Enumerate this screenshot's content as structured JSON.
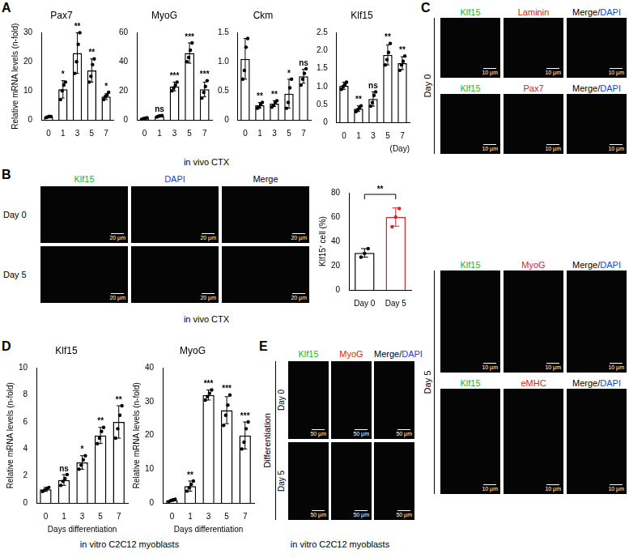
{
  "chart_data": [
    {
      "type": "bar",
      "title": "Pax7",
      "y_label": "Relative mRNA levels (n-fold)",
      "grid": false,
      "categories": [
        "0",
        "1",
        "3",
        "5",
        "7"
      ],
      "values": [
        1,
        10.5,
        23,
        17,
        8
      ],
      "error": [
        0.3,
        3,
        7,
        4,
        1
      ],
      "points": [
        [
          0.8,
          1.0,
          1.2,
          1.1
        ],
        [
          7,
          10,
          12,
          13
        ],
        [
          16,
          20,
          26,
          30
        ],
        [
          13,
          15,
          19,
          21
        ],
        [
          7,
          8,
          8.5,
          9.5
        ]
      ],
      "annotations": [
        null,
        "*",
        "**",
        "**",
        "*"
      ],
      "color": "#000000",
      "ylim": [
        0,
        30
      ],
      "yticks": [
        0,
        10,
        20,
        30
      ]
    },
    {
      "type": "bar",
      "title": "MyoG",
      "grid": false,
      "categories": [
        "0",
        "1",
        "3",
        "5",
        "7"
      ],
      "values": [
        1,
        2.5,
        23,
        46,
        21
      ],
      "error": [
        0.4,
        0.5,
        3,
        7,
        5
      ],
      "points": [
        [
          0.5,
          0.8,
          1.2,
          1.4
        ],
        [
          2,
          2.5,
          2.8,
          3
        ],
        [
          20,
          22,
          24,
          26
        ],
        [
          40,
          43,
          48,
          53
        ],
        [
          15,
          19,
          23,
          27
        ]
      ],
      "annotations": [
        null,
        "ns",
        "***",
        "***",
        "***"
      ],
      "color": "#000000",
      "ylim": [
        0,
        60
      ],
      "yticks": [
        0,
        20,
        40,
        60
      ]
    },
    {
      "type": "bar",
      "title": "Ckm",
      "grid": false,
      "categories": [
        "0",
        "1",
        "3",
        "5",
        "7"
      ],
      "values": [
        1.05,
        0.25,
        0.28,
        0.45,
        0.75
      ],
      "error": [
        0.35,
        0.05,
        0.05,
        0.25,
        0.12
      ],
      "points": [
        [
          0.7,
          0.85,
          1.25,
          1.4
        ],
        [
          0.2,
          0.22,
          0.27,
          0.3
        ],
        [
          0.22,
          0.25,
          0.3,
          0.33
        ],
        [
          0.2,
          0.3,
          0.55,
          0.7
        ],
        [
          0.6,
          0.7,
          0.8,
          0.88
        ]
      ],
      "annotations": [
        null,
        "**",
        "**",
        "*",
        "ns"
      ],
      "color": "#000000",
      "ylim": [
        0,
        1.5
      ],
      "yticks": [
        0,
        0.5,
        {
          "value": 1,
          "label": "1.0"
        },
        1.5
      ]
    },
    {
      "type": "bar",
      "title": "Klf15",
      "x_label": "(Day)",
      "grid": false,
      "categories": [
        "0",
        "1",
        "3",
        "5",
        "7"
      ],
      "values": [
        1.02,
        0.38,
        0.65,
        1.88,
        1.65
      ],
      "error": [
        0.1,
        0.08,
        0.2,
        0.28,
        0.18
      ],
      "points": [
        [
          0.92,
          1.0,
          1.05,
          1.12
        ],
        [
          0.3,
          0.35,
          0.4,
          0.46
        ],
        [
          0.45,
          0.55,
          0.75,
          0.85
        ],
        [
          1.6,
          1.75,
          1.95,
          2.2
        ],
        [
          1.45,
          1.6,
          1.7,
          1.85
        ]
      ],
      "annotations": [
        null,
        "**",
        "ns",
        "**",
        "**"
      ],
      "color": "#000000",
      "ylim": [
        0,
        2.5
      ],
      "yticks": [
        0,
        0.5,
        {
          "value": 1,
          "label": "1.0"
        },
        1.5,
        {
          "value": 2,
          "label": "2.0"
        },
        2.5
      ]
    },
    {
      "type": "bar",
      "y_label": "Klf15⁺ cell (%)",
      "grid": false,
      "categories": [
        "Day 0",
        "Day 5"
      ],
      "values": [
        30.5,
        60
      ],
      "error": [
        3.5,
        7.5
      ],
      "points": [
        [
          27,
          30,
          34
        ],
        [
          52,
          60,
          67
        ]
      ],
      "comparison": {
        "between": [
          "Day 0",
          "Day 5"
        ],
        "label": "**"
      },
      "colors": [
        "#000000",
        "#d62728"
      ],
      "ylim": [
        0,
        80
      ],
      "yticks": [
        0,
        20,
        40,
        60,
        80
      ]
    },
    {
      "type": "bar",
      "title": "Klf15",
      "y_label": "Relative mRNA levels (n-fold)",
      "x_label": "Days differentiation",
      "grid": false,
      "categories": [
        "0",
        "1",
        "3",
        "5",
        "7"
      ],
      "values": [
        1,
        1.7,
        3,
        5,
        6
      ],
      "error": [
        0.15,
        0.4,
        0.5,
        0.6,
        1.2
      ],
      "points": [
        [
          0.85,
          0.95,
          1.05,
          1.15
        ],
        [
          1.3,
          1.6,
          1.8,
          2.1
        ],
        [
          2.5,
          2.8,
          3.2,
          3.5
        ],
        [
          4.4,
          4.8,
          5.3,
          5.6
        ],
        [
          4.8,
          5.5,
          6.5,
          7.2
        ]
      ],
      "annotations": [
        null,
        "ns",
        "*",
        "**",
        "**"
      ],
      "color": "#000000",
      "ylim": [
        0,
        10
      ],
      "yticks": [
        0,
        2,
        4,
        6,
        8,
        10
      ]
    },
    {
      "type": "bar",
      "title": "MyoG",
      "y_label": "Relative mRNA levels (n-fold)",
      "x_label": "Days differentiation",
      "grid": false,
      "categories": [
        "0",
        "1",
        "3",
        "5",
        "7"
      ],
      "values": [
        0.8,
        5,
        32,
        27.5,
        20
      ],
      "error": [
        0.3,
        1.5,
        1.5,
        4,
        4
      ],
      "points": [
        [
          0.4,
          0.7,
          0.9,
          1.1
        ],
        [
          3.5,
          4.5,
          5.5,
          6.5
        ],
        [
          30.5,
          31.5,
          32.5,
          33.5
        ],
        [
          23,
          26,
          29,
          32
        ],
        [
          16,
          18,
          22,
          24
        ]
      ],
      "annotations": [
        null,
        "**",
        "***",
        "***",
        "***"
      ],
      "color": "#000000",
      "ylim": [
        0,
        40
      ],
      "yticks": [
        0,
        10,
        20,
        30,
        40
      ]
    }
  ],
  "panel_letters": [
    "A",
    "B",
    "C",
    "D",
    "E"
  ],
  "captions": {
    "A": "in vivo CTX",
    "B": "in vivo CTX",
    "D": "in vitro C2C12 myoblasts",
    "E": "in vitro C2C12 myoblasts"
  },
  "image_panels": {
    "B": {
      "headers": [
        [
          {
            "text": "Klf15",
            "color": "#22b822"
          }
        ],
        [
          {
            "text": "DAPI",
            "color": "#1f3fdd"
          }
        ],
        [
          {
            "text": "Merge",
            "color": "#000000"
          }
        ]
      ],
      "rows": [
        "Day 0",
        "Day 5"
      ],
      "scale_bar": "20 µm"
    },
    "C": {
      "groups": [
        {
          "label": "Day 0",
          "rows": [
            [
              [
                {
                  "text": "Klf15",
                  "color": "#22b822"
                }
              ],
              [
                {
                  "text": "Laminin",
                  "color": "#e02020"
                }
              ],
              [
                {
                  "text": "Merge/",
                  "color": "#000000"
                },
                {
                  "text": "DAPI",
                  "color": "#1f3fdd"
                }
              ]
            ],
            [
              [
                {
                  "text": "Klf15",
                  "color": "#22b822"
                }
              ],
              [
                {
                  "text": "Pax7",
                  "color": "#e02020"
                }
              ],
              [
                {
                  "text": "Merge/",
                  "color": "#000000"
                },
                {
                  "text": "DAPI",
                  "color": "#1f3fdd"
                }
              ]
            ]
          ]
        },
        {
          "label": "Day 5",
          "rows": [
            [
              [
                {
                  "text": "Klf15",
                  "color": "#22b822"
                }
              ],
              [
                {
                  "text": "MyoG",
                  "color": "#e02020"
                }
              ],
              [
                {
                  "text": "Merge/",
                  "color": "#000000"
                },
                {
                  "text": "DAPI",
                  "color": "#1f3fdd"
                }
              ]
            ],
            [
              [
                {
                  "text": "Klf15",
                  "color": "#22b822"
                }
              ],
              [
                {
                  "text": "eMHC",
                  "color": "#e02020"
                }
              ],
              [
                {
                  "text": "Merge/",
                  "color": "#000000"
                },
                {
                  "text": "DAPI",
                  "color": "#1f3fdd"
                }
              ]
            ]
          ]
        }
      ],
      "scale_bar": "10 µm"
    },
    "E": {
      "side_label": "Differentiation",
      "headers": [
        [
          {
            "text": "Klf15",
            "color": "#22b822"
          }
        ],
        [
          {
            "text": "MyoG",
            "color": "#e02020"
          }
        ],
        [
          {
            "text": "Merge/",
            "color": "#000000"
          },
          {
            "text": "DAPI",
            "color": "#1f3fdd"
          }
        ]
      ],
      "rows": [
        "Day 0",
        "Day 5"
      ],
      "scale_bar": "50 µm"
    }
  }
}
